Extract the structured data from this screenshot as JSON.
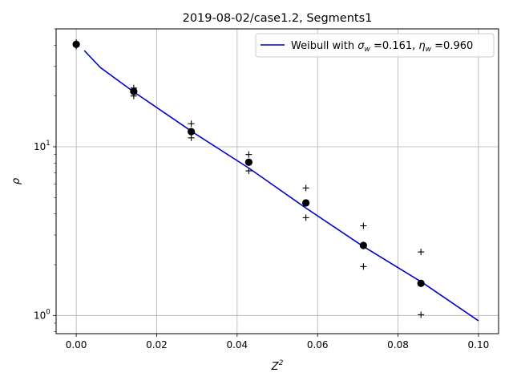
{
  "chart_data": {
    "type": "scatter",
    "title": "2019-08-02/case1.2, Segments1",
    "xlabel": "Z",
    "xlabel_sup": "2",
    "ylabel": "ρ",
    "xlim": [
      -0.005,
      0.105
    ],
    "ylim": [
      0.78,
      50
    ],
    "yscale": "log",
    "grid": true,
    "legend_position": "upper-right",
    "x_ticks": [
      {
        "value": 0.0,
        "label": "0.00"
      },
      {
        "value": 0.02,
        "label": "0.02"
      },
      {
        "value": 0.04,
        "label": "0.04"
      },
      {
        "value": 0.06,
        "label": "0.06"
      },
      {
        "value": 0.08,
        "label": "0.08"
      },
      {
        "value": 0.1,
        "label": "0.10"
      }
    ],
    "y_ticks": [
      {
        "value": 1,
        "base": "10",
        "exp": "0"
      },
      {
        "value": 10,
        "base": "10",
        "exp": "1"
      }
    ],
    "series": [
      {
        "name": "Weibull with σw =0.161, ηw =0.960",
        "legend_parts": {
          "a": "Weibull with ",
          "sigma": "σ",
          "sigma_sub": "w",
          "b": " =0.161, ",
          "eta": "η",
          "eta_sub": "w",
          "c": " =0.960"
        },
        "kind": "line",
        "color": "#0000cc",
        "x": [
          0.002,
          0.006,
          0.014,
          0.029,
          0.043,
          0.057,
          0.071,
          0.086,
          0.1
        ],
        "y": [
          37.2,
          29.5,
          21.4,
          12.2,
          7.45,
          4.35,
          2.6,
          1.57,
          0.93
        ]
      },
      {
        "kind": "points",
        "marker": "circle",
        "color": "#000000",
        "x": [
          0.0,
          0.0143,
          0.0286,
          0.0429,
          0.0571,
          0.0714,
          0.0857
        ],
        "y": [
          40.5,
          21.3,
          12.3,
          8.1,
          4.65,
          2.6,
          1.55
        ]
      },
      {
        "kind": "points",
        "marker": "plus",
        "color": "#000000",
        "x": [
          0.0,
          0.0,
          0.0143,
          0.0143,
          0.0286,
          0.0286,
          0.0429,
          0.0429,
          0.0571,
          0.0571,
          0.0714,
          0.0714,
          0.0857,
          0.0857
        ],
        "y": [
          41.5,
          39.5,
          22.3,
          20.0,
          13.7,
          11.3,
          9.0,
          7.2,
          5.7,
          3.8,
          3.4,
          1.95,
          2.38,
          1.01
        ]
      }
    ]
  }
}
